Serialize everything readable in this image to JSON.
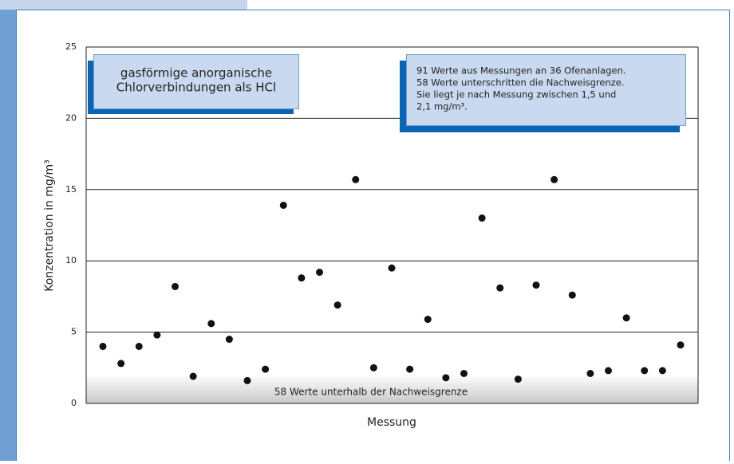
{
  "chart_data": {
    "type": "scatter",
    "y_label": "Konzentration in mg/m³",
    "x_label": "Messung",
    "values": [
      4.0,
      2.8,
      4.0,
      4.8,
      8.2,
      1.9,
      5.6,
      4.5,
      1.6,
      2.4,
      13.9,
      8.8,
      9.2,
      6.9,
      15.7,
      2.5,
      9.5,
      2.4,
      5.9,
      1.8,
      2.1,
      13.0,
      8.1,
      1.7,
      8.3,
      15.7,
      7.6,
      2.1,
      2.3,
      6.0,
      2.3,
      2.3,
      4.1
    ],
    "color": "#111111",
    "ylim": [
      0,
      25
    ],
    "yticks": [
      0,
      5,
      10,
      15,
      20,
      25
    ],
    "grid": true,
    "annotations": [
      {
        "lines": [
          "gasförmige anorganische",
          "Chlorverbindungen als HCl"
        ]
      },
      {
        "lines": [
          "91 Werte aus Messungen an 36 Ofenanlagen.",
          "58 Werte unterschritten  die Nachweisgrenze.",
          "Sie liegt je nach Messung zwischen 1,5 und",
          "2,1 mg/m³."
        ]
      },
      {
        "lines": [
          "58 Werte unterhalb der Nachweisgrenze"
        ]
      }
    ]
  }
}
